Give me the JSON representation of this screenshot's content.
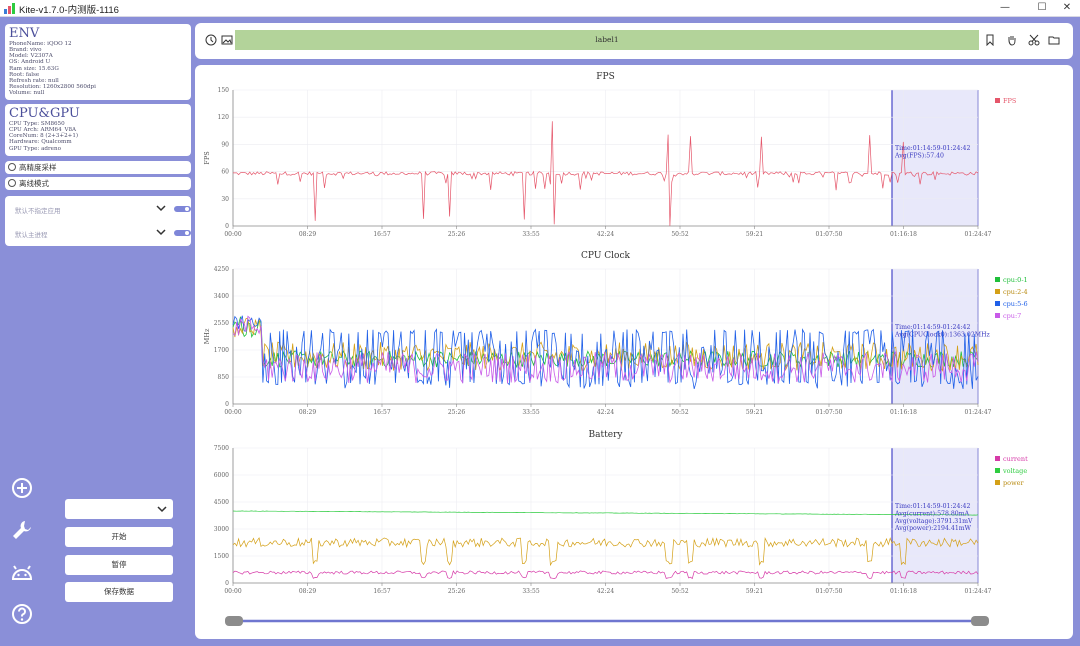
{
  "window": {
    "title": "Kite-v1.7.0-内测版-1116",
    "minimize_glyph": "—",
    "maximize_glyph": "☐",
    "close_glyph": "✕"
  },
  "env": {
    "title": "ENV",
    "lines": [
      "PhoneName: iQOO 12",
      "Brand: vivo",
      "Model: V2307A",
      "OS: Android U",
      "Ram size: 15.63G",
      "Root: false",
      "Refresh rate: null",
      "Resolution: 1260x2800 560dpi",
      "Volume: null"
    ]
  },
  "cpu_gpu": {
    "title": "CPU&GPU",
    "lines": [
      "CPU Type: SM8650",
      "CPU Arch: ARM64_V8A",
      "CoreNum: 8 (2+3+2+1)",
      "Hardware: Qualcomm",
      "GPU Type: adreno"
    ]
  },
  "options": {
    "high_precision_label": "高精度采样",
    "offline_mode_label": "离线模式",
    "app_select_placeholder": "默认不指定应用",
    "process_select_placeholder": "默认主进程"
  },
  "sidebar_icons": [
    "add-icon",
    "wrench-icon",
    "android-icon",
    "help-icon"
  ],
  "controls": {
    "device_select_value": "",
    "start_label": "开始",
    "pause_label": "暂停",
    "save_label": "保存数据"
  },
  "toolbar": {
    "label_text": "label1",
    "icons": [
      "clock-icon",
      "image-icon",
      "bookmark-icon",
      "hand-icon",
      "scissors-icon",
      "folder-icon"
    ]
  },
  "time_ticks": [
    "00:00",
    "08:29",
    "16:57",
    "25:26",
    "33:55",
    "42:24",
    "50:52",
    "59:21",
    "01:07:50",
    "01:16:18",
    "01:24:47"
  ],
  "selection": {
    "range_label": "Time:01:14:59-01:24:42",
    "color": "#6f6fe0"
  },
  "chart_data": [
    {
      "type": "line",
      "title": "FPS",
      "ylabel": "FPS",
      "ylim": [
        0,
        150
      ],
      "yticks": [
        0,
        30,
        60,
        90,
        120,
        150
      ],
      "series": [
        {
          "name": "FPS",
          "color": "#e5566a",
          "typical": 58,
          "spike_max": 118,
          "dip_min": 0
        }
      ],
      "annotations": [
        "Time:01:14:59-01:24:42",
        "Avg(FPS):57.40"
      ],
      "legend": "right"
    },
    {
      "type": "line",
      "title": "CPU Clock",
      "ylabel": "MHz",
      "ylim": [
        0,
        4250
      ],
      "yticks": [
        0,
        850,
        1700,
        2550,
        3400,
        4250
      ],
      "series": [
        {
          "name": "cpu:0-1",
          "color": "#1fbf3a"
        },
        {
          "name": "cpu:2-4",
          "color": "#d4a017"
        },
        {
          "name": "cpu:5-6",
          "color": "#2060e8"
        },
        {
          "name": "cpu:7",
          "color": "#c85ae8"
        }
      ],
      "annotations": [
        "Time:01:14:59-01:24:42",
        "Avg(CPUClock0):1363.02MHz"
      ],
      "legend": "right"
    },
    {
      "type": "line",
      "title": "Battery",
      "ylabel": "",
      "ylim": [
        0,
        7500
      ],
      "yticks": [
        0,
        1500,
        3000,
        4500,
        6000,
        7500
      ],
      "series": [
        {
          "name": "current",
          "color": "#d63aa8",
          "approx_level": 580
        },
        {
          "name": "voltage",
          "color": "#2ecc40",
          "approx_start": 4000,
          "approx_end": 3780
        },
        {
          "name": "power",
          "color": "#d4a017",
          "approx_level": 2250
        }
      ],
      "annotations": [
        "Time:01:14:59-01:24:42",
        "Avg(current):578.80mA",
        "Avg(voltage):3791.31mV",
        "Avg(power):2194.41mW"
      ],
      "legend": "right"
    }
  ]
}
